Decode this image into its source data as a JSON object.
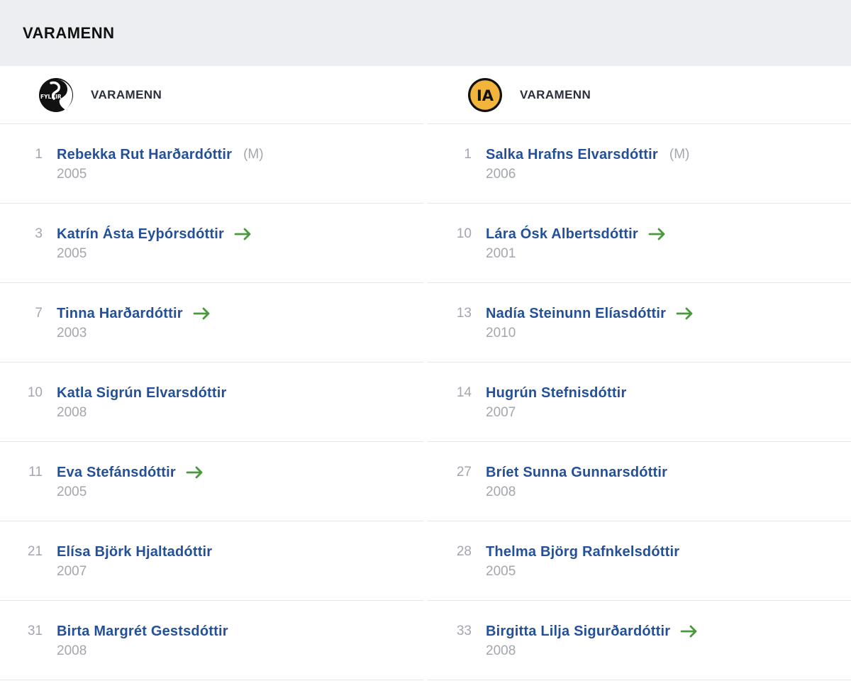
{
  "section": {
    "title": "VARAMENN"
  },
  "colors": {
    "name": "#24509a",
    "muted": "#a3a6ad",
    "arrow": "#4a9a3d",
    "header_bg": "#eceef2"
  },
  "home": {
    "label": "VARAMENN",
    "logo_icon": "fylkir-logo-icon",
    "logo_text": "FYLKIR",
    "players": [
      {
        "number": "1",
        "name": "Rebekka Rut Harðardóttir",
        "tag": "(M)",
        "year": "2005",
        "sub_in": false
      },
      {
        "number": "3",
        "name": "Katrín Ásta Eyþórsdóttir",
        "tag": "",
        "year": "2005",
        "sub_in": true
      },
      {
        "number": "7",
        "name": "Tinna Harðardóttir",
        "tag": "",
        "year": "2003",
        "sub_in": true
      },
      {
        "number": "10",
        "name": "Katla Sigrún Elvarsdóttir",
        "tag": "",
        "year": "2008",
        "sub_in": false
      },
      {
        "number": "11",
        "name": "Eva Stefánsdóttir",
        "tag": "",
        "year": "2005",
        "sub_in": true
      },
      {
        "number": "21",
        "name": "Elísa Björk Hjaltadóttir",
        "tag": "",
        "year": "2007",
        "sub_in": false
      },
      {
        "number": "31",
        "name": "Birta Margrét Gestsdóttir",
        "tag": "",
        "year": "2008",
        "sub_in": false
      }
    ]
  },
  "away": {
    "label": "VARAMENN",
    "logo_icon": "ia-logo-icon",
    "logo_text": "IA",
    "players": [
      {
        "number": "1",
        "name": "Salka Hrafns Elvarsdóttir",
        "tag": "(M)",
        "year": "2006",
        "sub_in": false
      },
      {
        "number": "10",
        "name": "Lára Ósk Albertsdóttir",
        "tag": "",
        "year": "2001",
        "sub_in": true
      },
      {
        "number": "13",
        "name": "Nadía Steinunn Elíasdóttir",
        "tag": "",
        "year": "2010",
        "sub_in": true
      },
      {
        "number": "14",
        "name": "Hugrún Stefnisdóttir",
        "tag": "",
        "year": "2007",
        "sub_in": false
      },
      {
        "number": "27",
        "name": "Bríet Sunna Gunnarsdóttir",
        "tag": "",
        "year": "2008",
        "sub_in": false
      },
      {
        "number": "28",
        "name": "Thelma Björg Rafnkelsdóttir",
        "tag": "",
        "year": "2005",
        "sub_in": false
      },
      {
        "number": "33",
        "name": "Birgitta Lilja Sigurðardóttir",
        "tag": "",
        "year": "2008",
        "sub_in": true
      }
    ]
  }
}
